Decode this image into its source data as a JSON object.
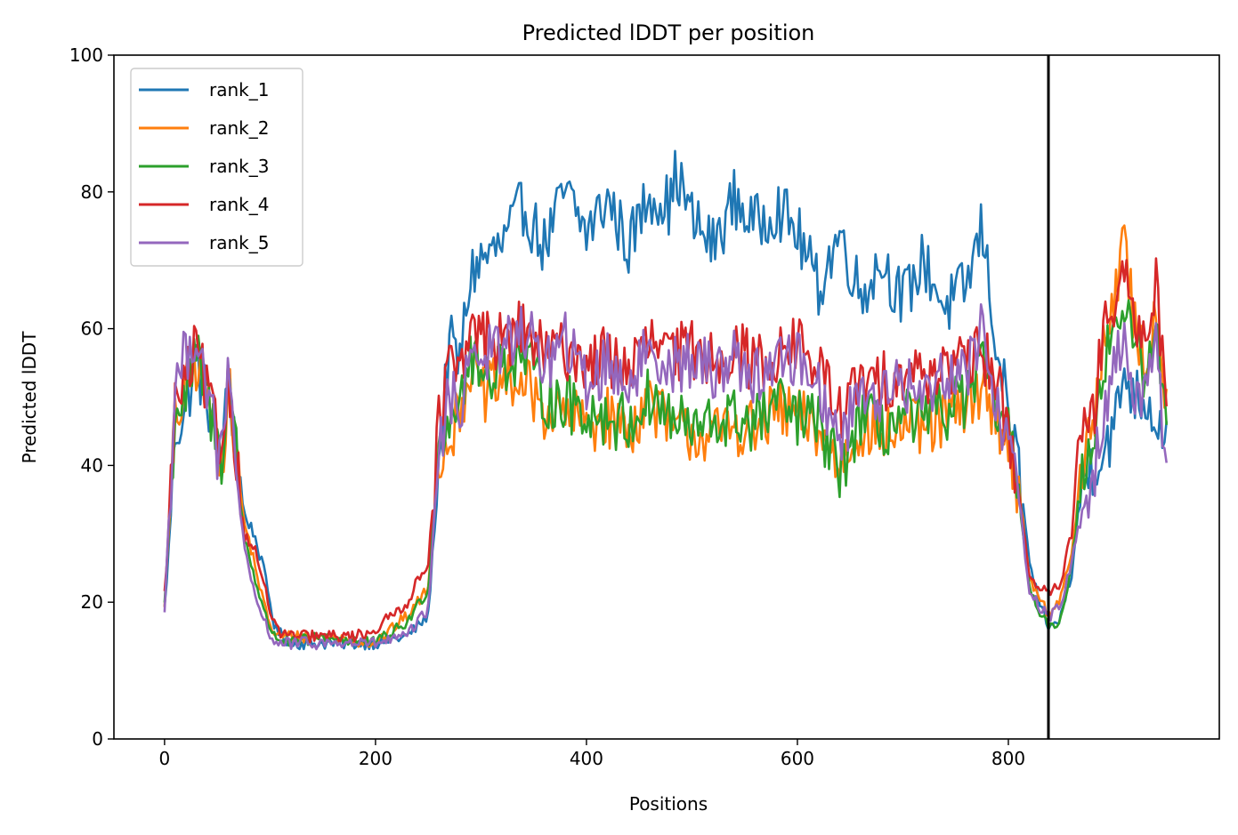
{
  "chart_data": {
    "type": "line",
    "title": "Predicted lDDT per position",
    "xlabel": "Positions",
    "ylabel": "Predicted lDDT",
    "xlim": [
      -48,
      1000
    ],
    "ylim": [
      0,
      100
    ],
    "xticks": [
      0,
      200,
      400,
      600,
      800
    ],
    "yticks": [
      0,
      20,
      40,
      60,
      80,
      100
    ],
    "grid": false,
    "legend_position": "upper-left",
    "vline": 838,
    "vline_color": "#000000",
    "series": [
      {
        "name": "rank_1",
        "color": "#1f77b4",
        "x": [
          0,
          5,
          10,
          20,
          30,
          35,
          40,
          50,
          55,
          60,
          65,
          75,
          85,
          95,
          105,
          120,
          150,
          200,
          230,
          250,
          260,
          270,
          280,
          290,
          300,
          320,
          340,
          360,
          380,
          400,
          420,
          440,
          460,
          480,
          485,
          500,
          520,
          540,
          560,
          580,
          600,
          620,
          640,
          660,
          680,
          700,
          720,
          740,
          760,
          775,
          790,
          800,
          810,
          820,
          830,
          840,
          850,
          860,
          870,
          880,
          900,
          910,
          920,
          930,
          940,
          950
        ],
        "y": [
          19,
          30,
          45,
          48,
          56,
          52,
          50,
          44,
          41,
          52,
          47,
          33,
          30,
          24,
          16,
          14,
          14,
          14,
          15,
          18,
          40,
          58,
          55,
          68,
          70,
          72,
          78,
          72,
          80,
          74,
          79,
          72,
          80,
          78,
          83,
          76,
          72,
          79,
          75,
          78,
          74,
          66,
          74,
          65,
          70,
          64,
          70,
          63,
          66,
          75,
          56,
          48,
          39,
          26,
          19,
          16,
          18,
          24,
          38,
          40,
          45,
          54,
          50,
          50,
          47,
          45
        ]
      },
      {
        "name": "rank_2",
        "color": "#ff7f0e",
        "x": [
          0,
          5,
          10,
          20,
          30,
          35,
          40,
          50,
          55,
          60,
          65,
          75,
          85,
          95,
          105,
          120,
          150,
          200,
          230,
          250,
          260,
          270,
          280,
          290,
          300,
          320,
          340,
          360,
          380,
          400,
          420,
          440,
          460,
          480,
          500,
          520,
          540,
          560,
          580,
          600,
          620,
          640,
          660,
          680,
          700,
          720,
          740,
          760,
          775,
          790,
          800,
          810,
          820,
          830,
          840,
          850,
          860,
          870,
          880,
          890,
          900,
          910,
          920,
          930,
          940,
          950
        ],
        "y": [
          20,
          32,
          47,
          50,
          55,
          52,
          49,
          43,
          41,
          52,
          46,
          32,
          26,
          19,
          15,
          15,
          15,
          14,
          18,
          22,
          42,
          44,
          48,
          55,
          50,
          52,
          52,
          48,
          47,
          46,
          47,
          45,
          50,
          45,
          45,
          44,
          46,
          45,
          48,
          47,
          45,
          40,
          46,
          44,
          46,
          45,
          47,
          48,
          52,
          47,
          43,
          36,
          24,
          20,
          18,
          21,
          27,
          40,
          45,
          58,
          65,
          72,
          60,
          55,
          62,
          50
        ]
      },
      {
        "name": "rank_3",
        "color": "#2ca02c",
        "x": [
          0,
          5,
          10,
          20,
          30,
          35,
          40,
          50,
          55,
          60,
          65,
          75,
          85,
          95,
          105,
          120,
          150,
          200,
          230,
          250,
          260,
          270,
          280,
          290,
          300,
          320,
          340,
          360,
          380,
          400,
          420,
          440,
          460,
          480,
          500,
          520,
          540,
          560,
          580,
          600,
          620,
          640,
          660,
          680,
          700,
          720,
          740,
          760,
          775,
          790,
          800,
          810,
          820,
          830,
          840,
          850,
          860,
          870,
          880,
          890,
          900,
          910,
          920,
          930,
          940,
          950
        ],
        "y": [
          20,
          33,
          48,
          50,
          56,
          53,
          50,
          43,
          41,
          54,
          48,
          30,
          24,
          18,
          15,
          14,
          15,
          14,
          17,
          22,
          43,
          48,
          50,
          56,
          53,
          55,
          56,
          50,
          49,
          48,
          47,
          46,
          50,
          47,
          45,
          46,
          47,
          46,
          49,
          47,
          46,
          39,
          47,
          45,
          47,
          46,
          48,
          50,
          54,
          48,
          44,
          36,
          22,
          18,
          16,
          18,
          25,
          40,
          44,
          55,
          60,
          64,
          56,
          54,
          60,
          45
        ]
      },
      {
        "name": "rank_4",
        "color": "#d62728",
        "x": [
          0,
          5,
          10,
          20,
          30,
          35,
          40,
          50,
          55,
          60,
          65,
          75,
          85,
          95,
          105,
          120,
          150,
          180,
          200,
          230,
          250,
          260,
          270,
          280,
          290,
          300,
          320,
          340,
          360,
          380,
          400,
          420,
          440,
          460,
          480,
          500,
          520,
          540,
          560,
          580,
          600,
          620,
          640,
          660,
          680,
          700,
          720,
          740,
          760,
          775,
          790,
          800,
          810,
          820,
          830,
          840,
          850,
          860,
          870,
          880,
          890,
          900,
          910,
          920,
          930,
          940,
          950
        ],
        "y": [
          21,
          34,
          49,
          52,
          57,
          54,
          51,
          44,
          42,
          53,
          47,
          30,
          28,
          22,
          16,
          15,
          15,
          15,
          16,
          20,
          26,
          46,
          55,
          52,
          60,
          59,
          58,
          60,
          56,
          57,
          55,
          56,
          54,
          58,
          56,
          57,
          56,
          57,
          55,
          56,
          58,
          54,
          48,
          52,
          52,
          54,
          53,
          55,
          54,
          57,
          52,
          45,
          36,
          24,
          22,
          21,
          23,
          30,
          46,
          46,
          60,
          63,
          67,
          60,
          58,
          68,
          48
        ]
      },
      {
        "name": "rank_5",
        "color": "#9467bd",
        "x": [
          0,
          5,
          10,
          20,
          30,
          35,
          40,
          50,
          55,
          60,
          65,
          75,
          85,
          95,
          105,
          120,
          150,
          200,
          230,
          250,
          260,
          270,
          280,
          290,
          300,
          320,
          340,
          360,
          380,
          400,
          420,
          440,
          460,
          480,
          500,
          520,
          540,
          560,
          580,
          600,
          620,
          640,
          660,
          680,
          700,
          720,
          740,
          760,
          775,
          790,
          800,
          810,
          820,
          830,
          840,
          850,
          860,
          870,
          880,
          890,
          900,
          910,
          920,
          930,
          940,
          950
        ],
        "y": [
          19,
          35,
          52,
          56,
          60,
          56,
          52,
          42,
          41,
          53,
          46,
          28,
          21,
          17,
          14,
          14,
          14,
          14,
          15,
          19,
          42,
          50,
          48,
          58,
          56,
          57,
          60,
          55,
          58,
          52,
          55,
          52,
          57,
          55,
          55,
          54,
          56,
          53,
          55,
          56,
          52,
          43,
          52,
          50,
          52,
          50,
          54,
          54,
          60,
          48,
          44,
          35,
          22,
          19,
          18,
          20,
          26,
          33,
          38,
          48,
          55,
          58,
          50,
          52,
          57,
          40
        ]
      }
    ]
  }
}
